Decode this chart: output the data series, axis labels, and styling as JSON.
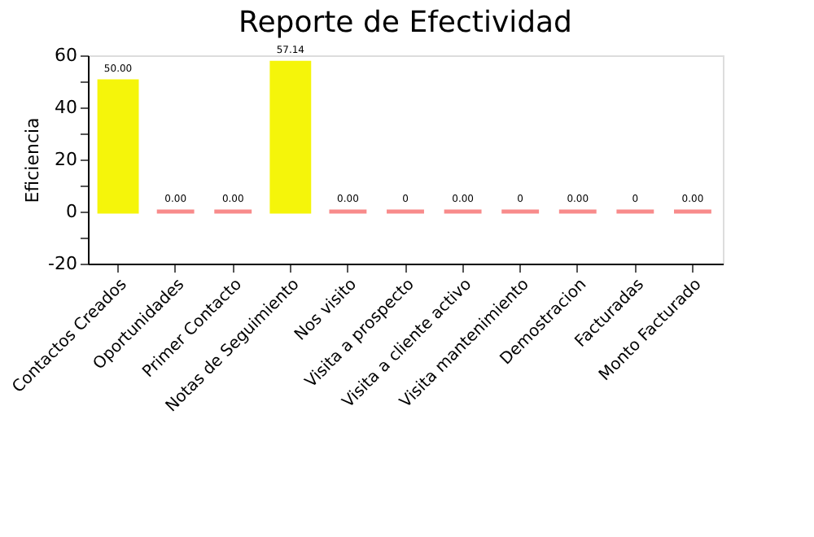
{
  "chart_data": {
    "type": "bar",
    "title": "Reporte de Efectividad",
    "ylabel": "Eficiencia",
    "categories": [
      "Contactos Creados",
      "Oportunidades",
      "Primer Contacto",
      "Notas de Seguimiento",
      "Nos visito",
      "Visita a prospecto",
      "Visita a cliente activo",
      "Visita mantenimiento",
      "Demostracion",
      "Facturadas",
      "Monto Facturado"
    ],
    "values": [
      50,
      0,
      0,
      57.14,
      0,
      0,
      0,
      0,
      0,
      0,
      0
    ],
    "value_labels": [
      "50.00",
      "0.00",
      "0.00",
      "57.14",
      "0.00",
      "0",
      "0.00",
      "0",
      "0.00",
      "0",
      "0.00"
    ],
    "colors": [
      "#f5f50a",
      "#f88b8b",
      "#f88b8b",
      "#f5f50a",
      "#f88b8b",
      "#f88b8b",
      "#f88b8b",
      "#f88b8b",
      "#f88b8b",
      "#f88b8b",
      "#f88b8b"
    ],
    "ylim": [
      -20,
      60
    ],
    "yticks": [
      -20,
      {
        "value": -10,
        "label": null
      },
      0,
      {
        "value": 10,
        "label": null
      },
      20,
      {
        "value": 30,
        "label": null
      },
      40,
      {
        "value": 50,
        "label": null
      },
      60
    ],
    "grid": false
  }
}
